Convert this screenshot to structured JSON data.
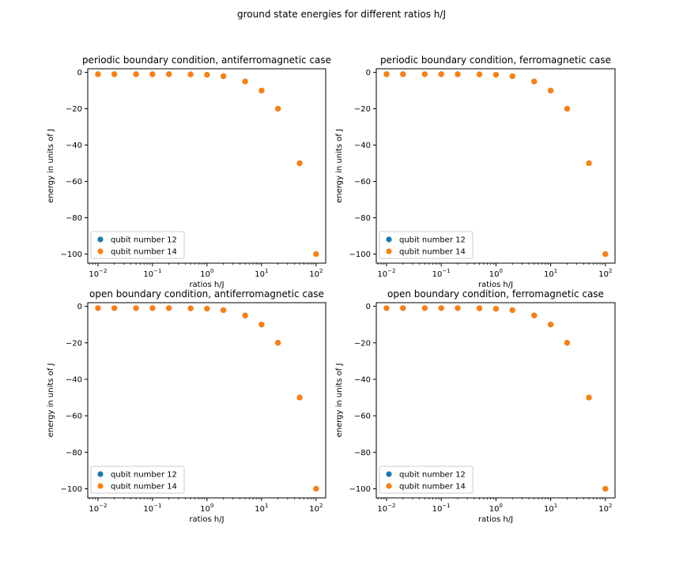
{
  "figure": {
    "suptitle": "ground state energies for different ratios h/J"
  },
  "colors": {
    "series_a": "#1f77b4",
    "series_b": "#ff7f0e"
  },
  "chart_data": [
    {
      "type": "scatter",
      "title": "periodic boundary condition, antiferromagnetic case",
      "xlabel": "ratios h/J",
      "ylabel": "energy in units of J",
      "xscale": "log",
      "xlim": [
        0.0065,
        150
      ],
      "ylim": [
        -105,
        2
      ],
      "xticks": [
        0.01,
        0.1,
        1,
        10,
        100
      ],
      "xtick_exponents": [
        "−2",
        "−1",
        "0",
        "1",
        "2"
      ],
      "yticks": [
        0,
        -20,
        -40,
        -60,
        -80,
        -100
      ],
      "ytick_labels": [
        "0",
        "−20",
        "−40",
        "−60",
        "−80",
        "−100"
      ],
      "legend": "lower-left",
      "series": [
        {
          "name": "qubit number 12",
          "color": "#1f77b4",
          "x": [
            0.01,
            0.02,
            0.05,
            0.1,
            0.2,
            0.5,
            1,
            2,
            5,
            10,
            20,
            50,
            100
          ],
          "y": [
            -1.0,
            -1.0,
            -1.0,
            -1.0,
            -1.0,
            -1.1,
            -1.3,
            -2.1,
            -5.0,
            -10.0,
            -20.0,
            -50.0,
            -100.0
          ]
        },
        {
          "name": "qubit number 14",
          "color": "#ff7f0e",
          "x": [
            0.01,
            0.02,
            0.05,
            0.1,
            0.2,
            0.5,
            1,
            2,
            5,
            10,
            20,
            50,
            100
          ],
          "y": [
            -1.0,
            -1.0,
            -1.0,
            -1.0,
            -1.0,
            -1.1,
            -1.3,
            -2.1,
            -5.0,
            -10.0,
            -20.0,
            -50.0,
            -100.0
          ]
        }
      ]
    },
    {
      "type": "scatter",
      "title": "periodic boundary condition, ferromagnetic case",
      "xlabel": "ratios h/J",
      "ylabel": "energy in units of J",
      "xscale": "log",
      "xlim": [
        0.0065,
        150
      ],
      "ylim": [
        -105,
        2
      ],
      "xticks": [
        0.01,
        0.1,
        1,
        10,
        100
      ],
      "xtick_exponents": [
        "−2",
        "−1",
        "0",
        "1",
        "2"
      ],
      "yticks": [
        0,
        -20,
        -40,
        -60,
        -80,
        -100
      ],
      "ytick_labels": [
        "0",
        "−20",
        "−40",
        "−60",
        "−80",
        "−100"
      ],
      "legend": "lower-left",
      "series": [
        {
          "name": "qubit number 12",
          "color": "#1f77b4",
          "x": [
            0.01,
            0.02,
            0.05,
            0.1,
            0.2,
            0.5,
            1,
            2,
            5,
            10,
            20,
            50,
            100
          ],
          "y": [
            -1.0,
            -1.0,
            -1.0,
            -1.0,
            -1.0,
            -1.1,
            -1.3,
            -2.1,
            -5.0,
            -10.0,
            -20.0,
            -50.0,
            -100.0
          ]
        },
        {
          "name": "qubit number 14",
          "color": "#ff7f0e",
          "x": [
            0.01,
            0.02,
            0.05,
            0.1,
            0.2,
            0.5,
            1,
            2,
            5,
            10,
            20,
            50,
            100
          ],
          "y": [
            -1.0,
            -1.0,
            -1.0,
            -1.0,
            -1.0,
            -1.1,
            -1.3,
            -2.1,
            -5.0,
            -10.0,
            -20.0,
            -50.0,
            -100.0
          ]
        }
      ]
    },
    {
      "type": "scatter",
      "title": "open boundary condition, antiferromagnetic case",
      "xlabel": "ratios h/J",
      "ylabel": "energy in units of J",
      "xscale": "log",
      "xlim": [
        0.0065,
        150
      ],
      "ylim": [
        -105,
        2
      ],
      "xticks": [
        0.01,
        0.1,
        1,
        10,
        100
      ],
      "xtick_exponents": [
        "−2",
        "−1",
        "0",
        "1",
        "2"
      ],
      "yticks": [
        0,
        -20,
        -40,
        -60,
        -80,
        -100
      ],
      "ytick_labels": [
        "0",
        "−20",
        "−40",
        "−60",
        "−80",
        "−100"
      ],
      "legend": "lower-left",
      "series": [
        {
          "name": "qubit number 12",
          "color": "#1f77b4",
          "x": [
            0.01,
            0.02,
            0.05,
            0.1,
            0.2,
            0.5,
            1,
            2,
            5,
            10,
            20,
            50,
            100
          ],
          "y": [
            -1.0,
            -1.0,
            -1.0,
            -1.0,
            -1.0,
            -1.1,
            -1.3,
            -2.1,
            -5.0,
            -10.0,
            -20.0,
            -50.0,
            -100.0
          ]
        },
        {
          "name": "qubit number 14",
          "color": "#ff7f0e",
          "x": [
            0.01,
            0.02,
            0.05,
            0.1,
            0.2,
            0.5,
            1,
            2,
            5,
            10,
            20,
            50,
            100
          ],
          "y": [
            -1.0,
            -1.0,
            -1.0,
            -1.0,
            -1.0,
            -1.1,
            -1.3,
            -2.1,
            -5.0,
            -10.0,
            -20.0,
            -50.0,
            -100.0
          ]
        }
      ]
    },
    {
      "type": "scatter",
      "title": "open boundary condition, ferromagnetic case",
      "xlabel": "ratios h/J",
      "ylabel": "energy in units of J",
      "xscale": "log",
      "xlim": [
        0.0065,
        150
      ],
      "ylim": [
        -105,
        2
      ],
      "xticks": [
        0.01,
        0.1,
        1,
        10,
        100
      ],
      "xtick_exponents": [
        "−2",
        "−1",
        "0",
        "1",
        "2"
      ],
      "yticks": [
        0,
        -20,
        -40,
        -60,
        -80,
        -100
      ],
      "ytick_labels": [
        "0",
        "−20",
        "−40",
        "−60",
        "−80",
        "−100"
      ],
      "legend": "lower-left",
      "series": [
        {
          "name": "qubit number 12",
          "color": "#1f77b4",
          "x": [
            0.01,
            0.02,
            0.05,
            0.1,
            0.2,
            0.5,
            1,
            2,
            5,
            10,
            20,
            50,
            100
          ],
          "y": [
            -1.0,
            -1.0,
            -1.0,
            -1.0,
            -1.0,
            -1.1,
            -1.3,
            -2.1,
            -5.0,
            -10.0,
            -20.0,
            -50.0,
            -100.0
          ]
        },
        {
          "name": "qubit number 14",
          "color": "#ff7f0e",
          "x": [
            0.01,
            0.02,
            0.05,
            0.1,
            0.2,
            0.5,
            1,
            2,
            5,
            10,
            20,
            50,
            100
          ],
          "y": [
            -1.0,
            -1.0,
            -1.0,
            -1.0,
            -1.0,
            -1.1,
            -1.3,
            -2.1,
            -5.0,
            -10.0,
            -20.0,
            -50.0,
            -100.0
          ]
        }
      ]
    }
  ]
}
